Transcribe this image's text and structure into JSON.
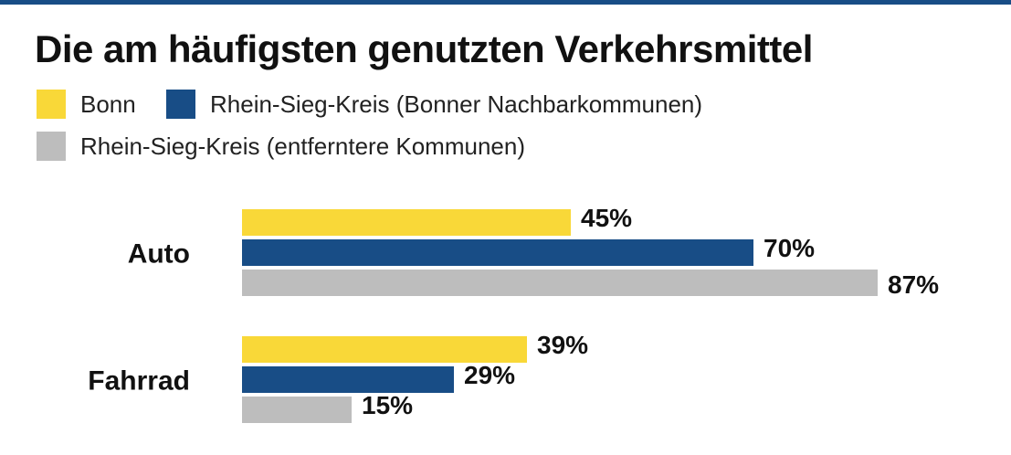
{
  "chart_data": {
    "type": "bar",
    "orientation": "horizontal",
    "title": "Die am häufigsten genutzten Verkehrsmittel",
    "legend_position": "top-left",
    "grid": false,
    "value_suffix": "%",
    "xlim": [
      0,
      100
    ],
    "categories": [
      "Auto",
      "Fahrrad"
    ],
    "series": [
      {
        "name": "Bonn",
        "color": "#f9d838",
        "values": [
          45,
          39
        ]
      },
      {
        "name": "Rhein-Sieg-Kreis (Bonner Nachbarkommunen)",
        "color": "#184d86",
        "values": [
          70,
          29
        ]
      },
      {
        "name": "Rhein-Sieg-Kreis (entferntere Kommunen)",
        "color": "#bdbdbd",
        "values": [
          87,
          15
        ]
      }
    ]
  }
}
